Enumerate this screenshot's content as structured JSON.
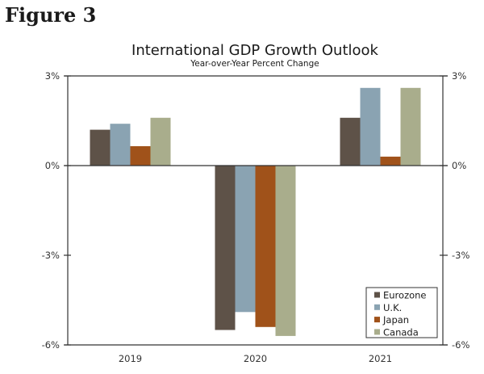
{
  "figure_label": "Figure 3",
  "chart_data": {
    "type": "bar",
    "title": "International GDP Growth Outlook",
    "subtitle": "Year-over-Year Percent Change",
    "xlabel": "",
    "ylabel": "",
    "categories": [
      "2019",
      "2020",
      "2021"
    ],
    "series": [
      {
        "name": "Eurozone",
        "color": "#5e5248",
        "values": [
          1.2,
          -5.5,
          1.6
        ]
      },
      {
        "name": "U.K.",
        "color": "#8aa3b2",
        "values": [
          1.4,
          -4.9,
          2.6
        ]
      },
      {
        "name": "Japan",
        "color": "#a0521a",
        "values": [
          0.65,
          -5.4,
          0.3
        ]
      },
      {
        "name": "Canada",
        "color": "#a9ad8c",
        "values": [
          1.6,
          -5.7,
          2.6
        ]
      }
    ],
    "ylim": [
      -6,
      3
    ],
    "yticks": [
      3,
      0,
      -3,
      -6
    ],
    "ytick_labels": [
      "3%",
      "0%",
      "-3%",
      "-6%"
    ],
    "secondary_y_axis": true,
    "grid": false,
    "legend_position": "bottom-right"
  }
}
